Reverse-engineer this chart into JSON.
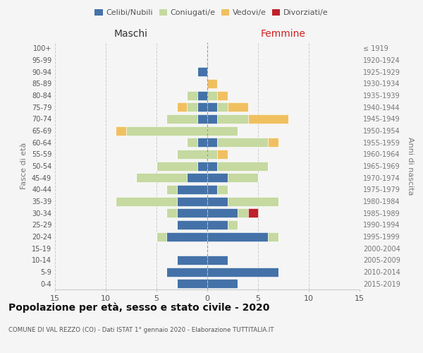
{
  "age_groups": [
    "0-4",
    "5-9",
    "10-14",
    "15-19",
    "20-24",
    "25-29",
    "30-34",
    "35-39",
    "40-44",
    "45-49",
    "50-54",
    "55-59",
    "60-64",
    "65-69",
    "70-74",
    "75-79",
    "80-84",
    "85-89",
    "90-94",
    "95-99",
    "100+"
  ],
  "birth_years": [
    "2015-2019",
    "2010-2014",
    "2005-2009",
    "2000-2004",
    "1995-1999",
    "1990-1994",
    "1985-1989",
    "1980-1984",
    "1975-1979",
    "1970-1974",
    "1965-1969",
    "1960-1964",
    "1955-1959",
    "1950-1954",
    "1945-1949",
    "1940-1944",
    "1935-1939",
    "1930-1934",
    "1925-1929",
    "1920-1924",
    "≤ 1919"
  ],
  "male": {
    "celibi": [
      3,
      4,
      3,
      0,
      4,
      3,
      3,
      3,
      3,
      2,
      1,
      0,
      1,
      0,
      1,
      1,
      1,
      0,
      1,
      0,
      0
    ],
    "coniugati": [
      0,
      0,
      0,
      0,
      1,
      0,
      1,
      6,
      1,
      5,
      4,
      3,
      1,
      8,
      3,
      1,
      1,
      0,
      0,
      0,
      0
    ],
    "vedovi": [
      0,
      0,
      0,
      0,
      0,
      0,
      0,
      0,
      0,
      0,
      0,
      0,
      0,
      1,
      0,
      1,
      0,
      0,
      0,
      0,
      0
    ],
    "divorziati": [
      0,
      0,
      0,
      0,
      0,
      0,
      0,
      0,
      0,
      0,
      0,
      0,
      0,
      0,
      0,
      0,
      0,
      0,
      0,
      0,
      0
    ]
  },
  "female": {
    "nubili": [
      3,
      7,
      2,
      0,
      6,
      2,
      3,
      2,
      1,
      2,
      1,
      0,
      1,
      0,
      1,
      1,
      0,
      0,
      0,
      0,
      0
    ],
    "coniugate": [
      0,
      0,
      0,
      0,
      1,
      1,
      1,
      5,
      1,
      3,
      5,
      1,
      5,
      3,
      3,
      1,
      1,
      0,
      0,
      0,
      0
    ],
    "vedove": [
      0,
      0,
      0,
      0,
      0,
      0,
      0,
      0,
      0,
      0,
      0,
      1,
      1,
      0,
      4,
      2,
      1,
      1,
      0,
      0,
      0
    ],
    "divorziate": [
      0,
      0,
      0,
      0,
      0,
      0,
      1,
      0,
      0,
      0,
      0,
      0,
      0,
      0,
      0,
      0,
      0,
      0,
      0,
      0,
      0
    ]
  },
  "colors": {
    "celibi_nubili": "#4472a8",
    "coniugati": "#c5d9a0",
    "vedovi": "#f0c060",
    "divorziati": "#c0202a"
  },
  "title": "Popolazione per età, sesso e stato civile - 2020",
  "subtitle": "COMUNE DI VAL REZZO (CO) - Dati ISTAT 1° gennaio 2020 - Elaborazione TUTTITALIA.IT",
  "xlabel_left": "Maschi",
  "xlabel_right": "Femmine",
  "ylabel_left": "Fasce di età",
  "ylabel_right": "Anni di nascita",
  "xlim": 15,
  "bg_color": "#f5f5f5",
  "grid_color": "#cccccc"
}
